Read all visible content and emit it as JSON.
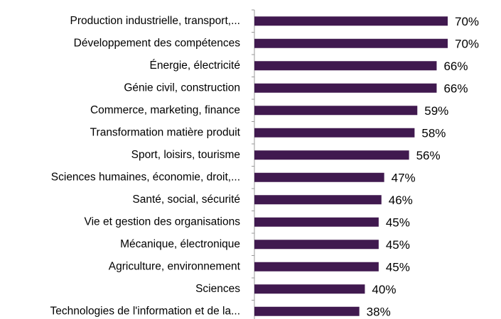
{
  "chart_data": {
    "type": "bar",
    "orientation": "horizontal",
    "categories": [
      "Production industrielle, transport,...",
      "Développement des compétences",
      "Énergie, électricité",
      "Génie civil, construction",
      "Commerce, marketing, finance",
      "Transformation matière produit",
      "Sport, loisirs, tourisme",
      "Sciences humaines, économie, droit,...",
      "Santé, social, sécurité",
      "Vie et gestion des organisations",
      "Mécanique, électronique",
      "Agriculture, environnement",
      "Sciences",
      "Technologies de l'information et de la..."
    ],
    "values": [
      70,
      70,
      66,
      66,
      59,
      58,
      56,
      47,
      46,
      45,
      45,
      45,
      40,
      38
    ],
    "value_labels": [
      "70%",
      "70%",
      "66%",
      "66%",
      "59%",
      "58%",
      "56%",
      "47%",
      "46%",
      "45%",
      "45%",
      "45%",
      "40%",
      "38%"
    ],
    "color": "#40194f"
  }
}
